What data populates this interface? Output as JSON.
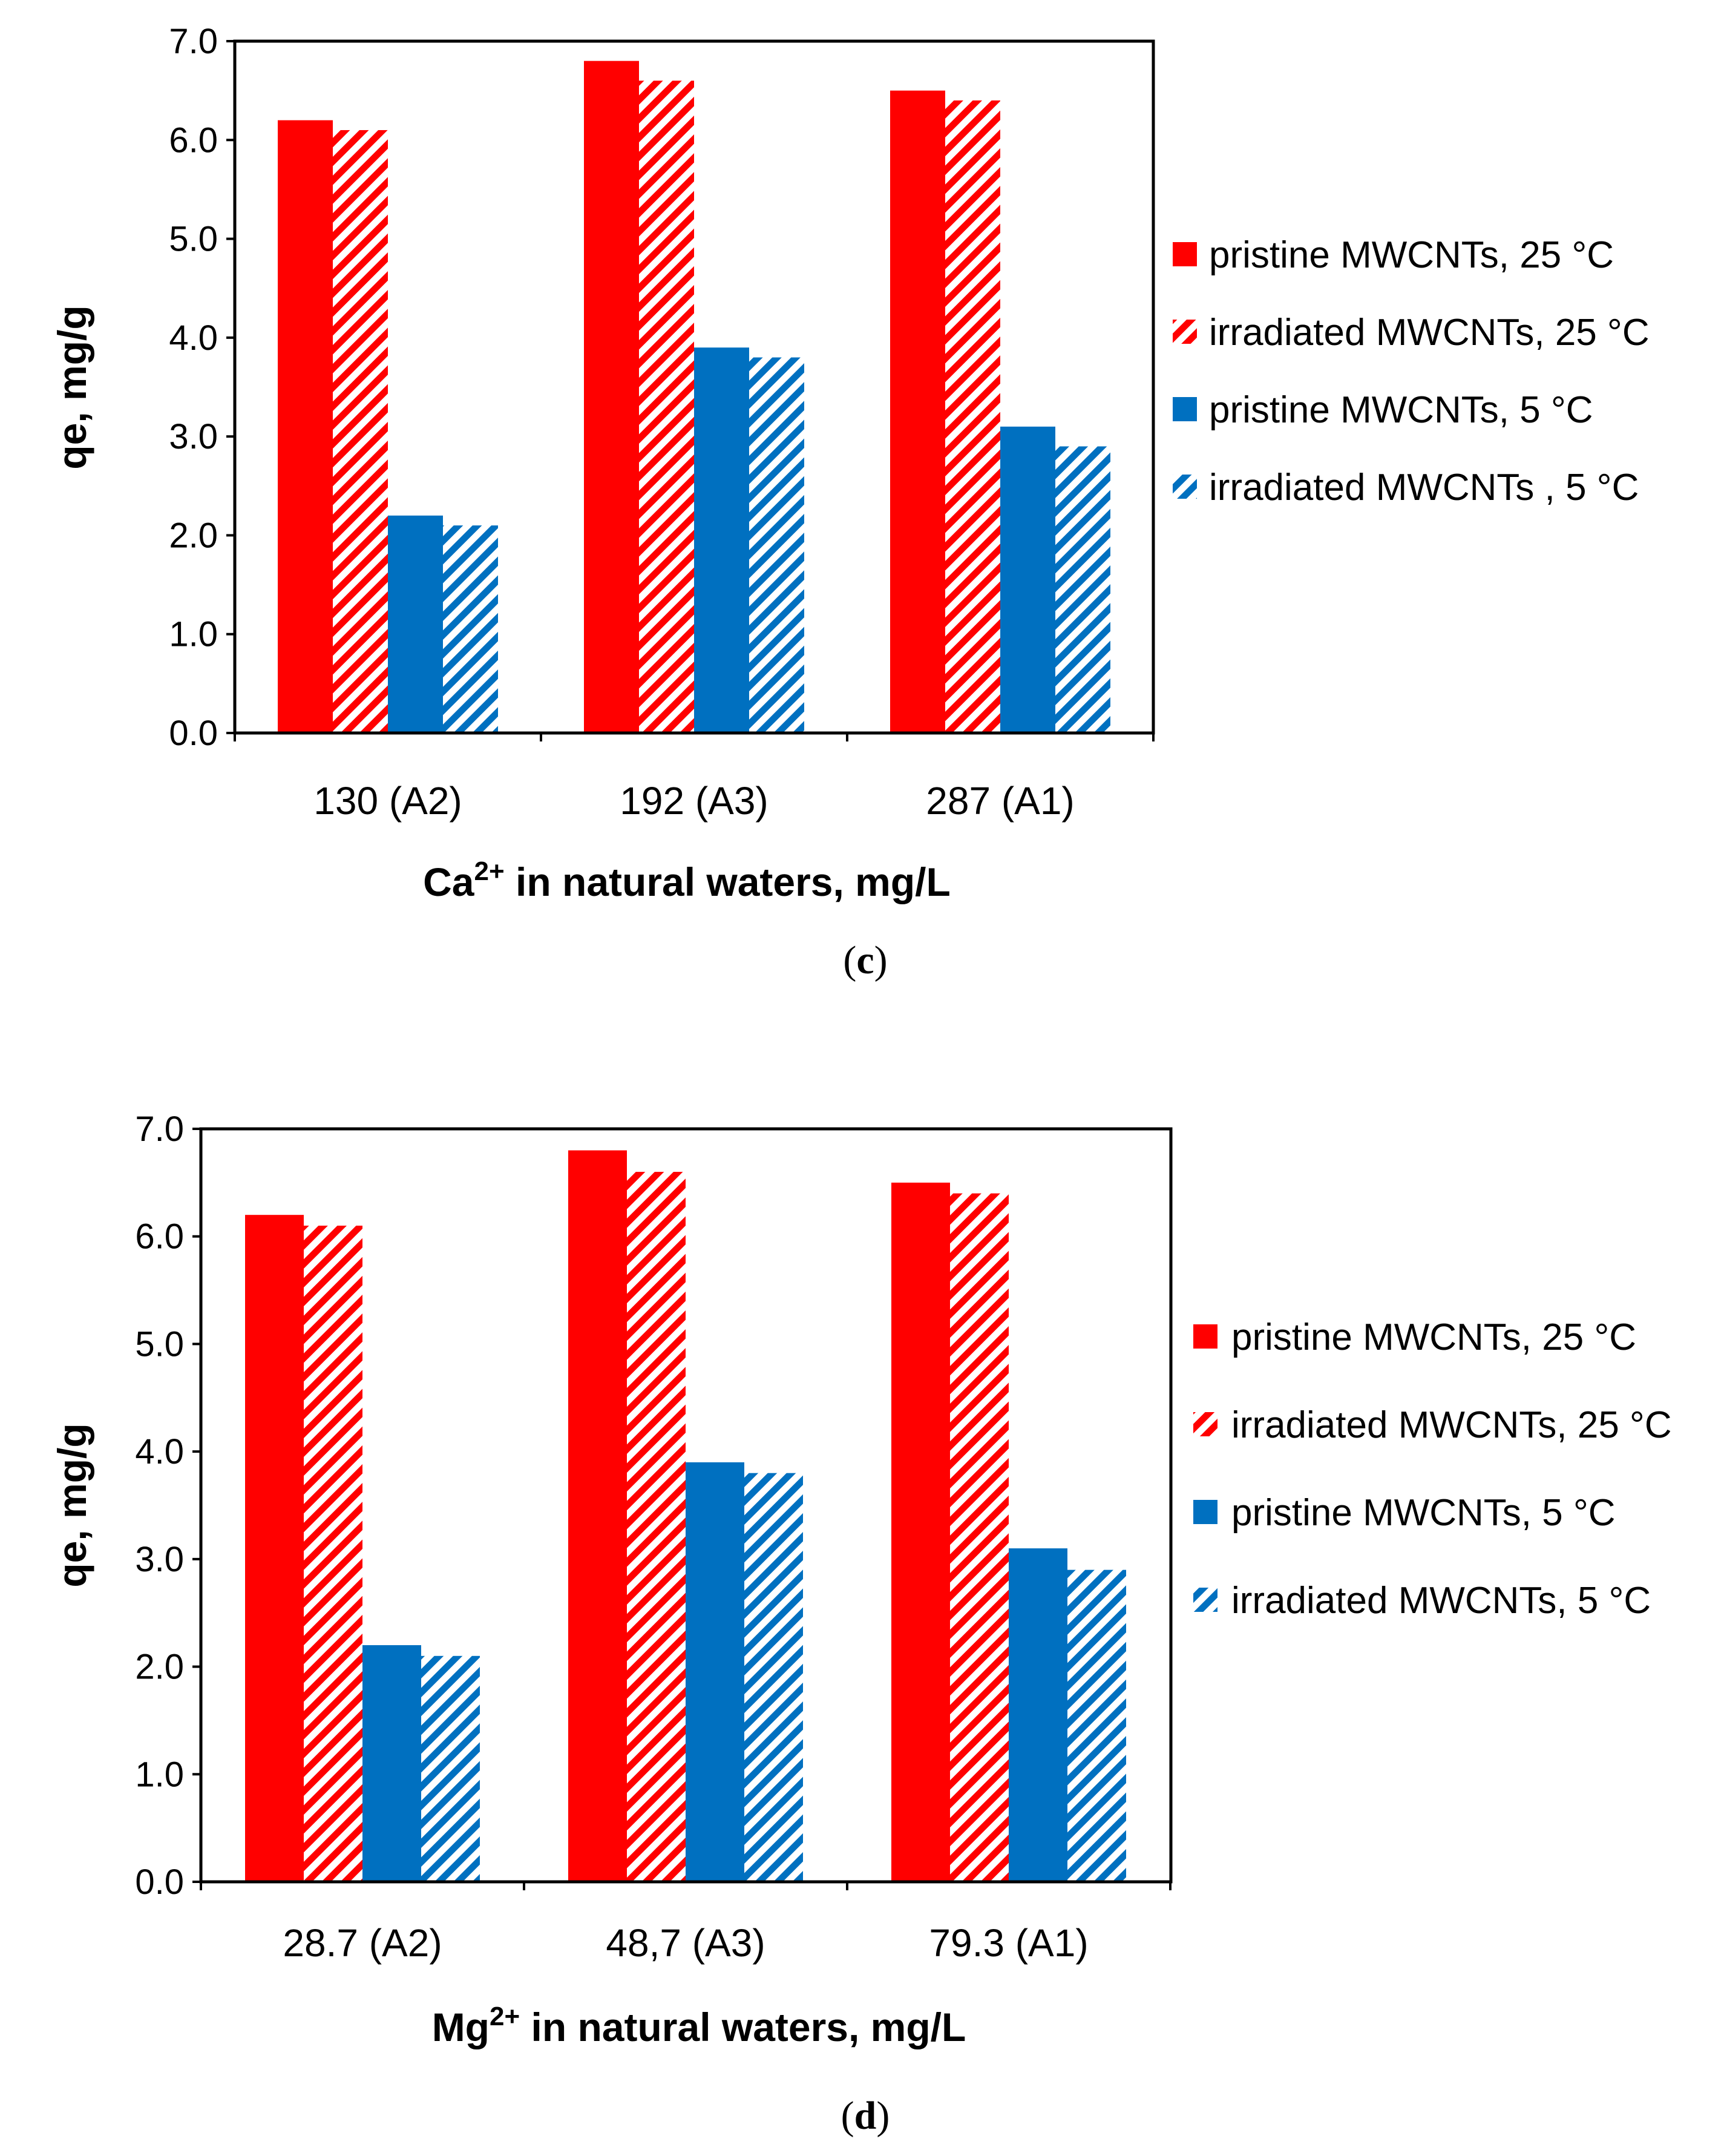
{
  "chart_data": [
    {
      "type": "bar",
      "panel": "c",
      "panel_label_open": "(",
      "panel_label_letter": "c",
      "panel_label_close": ")",
      "xlabel_main": "Ca",
      "xlabel_sup": "2+",
      "xlabel_rest": " in natural waters, mg/L",
      "ylabel": "qe, mg/g",
      "ylim": [
        0,
        7
      ],
      "yticks": [
        "0.0",
        "1.0",
        "2.0",
        "3.0",
        "4.0",
        "5.0",
        "6.0",
        "7.0"
      ],
      "categories": [
        "130 (A2)",
        "192 (A3)",
        "287 (A1)"
      ],
      "series": [
        {
          "name": "pristine MWCNTs, 25 °C",
          "color": "#ff0000",
          "pattern": "solid",
          "values": [
            6.2,
            6.8,
            6.5
          ]
        },
        {
          "name": "irradiated MWCNTs, 25 °C",
          "color": "#ff0000",
          "pattern": "hatch",
          "values": [
            6.1,
            6.6,
            6.4
          ]
        },
        {
          "name": "pristine MWCNTs, 5 °C",
          "color": "#0070c0",
          "pattern": "solid",
          "values": [
            2.2,
            3.9,
            3.1
          ]
        },
        {
          "name": "irradiated MWCNTs , 5 °C",
          "color": "#0070c0",
          "pattern": "hatch",
          "values": [
            2.1,
            3.8,
            2.9
          ]
        }
      ]
    },
    {
      "type": "bar",
      "panel": "d",
      "panel_label_open": "(",
      "panel_label_letter": "d",
      "panel_label_close": ")",
      "xlabel_main": "Mg",
      "xlabel_sup": "2+",
      "xlabel_rest": " in natural waters, mg/L",
      "ylabel": "qe, mg/g",
      "ylim": [
        0,
        7
      ],
      "yticks": [
        "0.0",
        "1.0",
        "2.0",
        "3.0",
        "4.0",
        "5.0",
        "6.0",
        "7.0"
      ],
      "categories": [
        "28.7 (A2)",
        "48,7 (A3)",
        "79.3 (A1)"
      ],
      "series": [
        {
          "name": "pristine MWCNTs, 25 °C",
          "color": "#ff0000",
          "pattern": "solid",
          "values": [
            6.2,
            6.8,
            6.5
          ]
        },
        {
          "name": "irradiated MWCNTs, 25 °C",
          "color": "#ff0000",
          "pattern": "hatch",
          "values": [
            6.1,
            6.6,
            6.4
          ]
        },
        {
          "name": "pristine MWCNTs, 5 °C",
          "color": "#0070c0",
          "pattern": "solid",
          "values": [
            2.2,
            3.9,
            3.1
          ]
        },
        {
          "name": "irradiated MWCNTs, 5 °C",
          "color": "#0070c0",
          "pattern": "hatch",
          "values": [
            2.1,
            3.8,
            2.9
          ]
        }
      ]
    }
  ]
}
